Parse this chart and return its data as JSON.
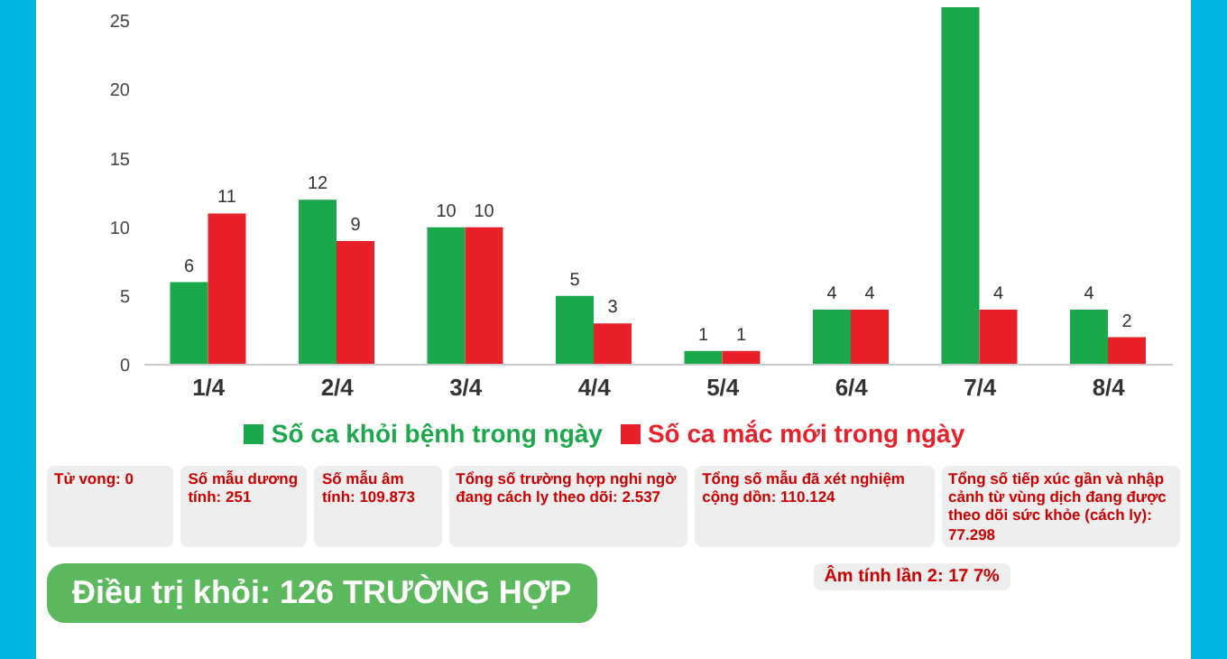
{
  "chart_data": {
    "type": "bar",
    "categories": [
      "1/4",
      "2/4",
      "3/4",
      "4/4",
      "5/4",
      "6/4",
      "7/4",
      "8/4"
    ],
    "series": [
      {
        "name": "Số ca khỏi bệnh trong ngày",
        "color": "#1aa84b",
        "values": [
          6,
          12,
          10,
          5,
          1,
          4,
          26,
          4
        ],
        "value_labels": [
          "6",
          "12",
          "10",
          "5",
          "1",
          "4",
          null,
          "4"
        ]
      },
      {
        "name": "Số ca mắc mới trong ngày",
        "color": "#e8202a",
        "values": [
          11,
          9,
          10,
          3,
          1,
          4,
          4,
          2
        ],
        "value_labels": [
          "11",
          "9",
          "10",
          "3",
          "1",
          "4",
          "4",
          "2"
        ]
      }
    ],
    "ylim": [
      0,
      26
    ],
    "yticks": [
      0,
      5,
      10,
      15,
      20,
      25
    ],
    "grid": false,
    "legend": "bottom",
    "annotations": [
      "Tử vong: 0",
      "Số mẫu dương tính: 251",
      "Số mẫu âm tính: 109.873",
      "Tổng số trường hợp nghi ngờ đang cách ly theo dõi: 2.537",
      "Tổng số mẫu đã xét nghiệm cộng dồn: 110.124",
      "Tổng số tiếp xúc gần và nhập cảnh từ vùng dịch đang được theo dõi sức khỏe (cách ly): 77.298",
      "Điều trị khỏi: 126 TRƯỜNG HỢP",
      "Âm tính lần 2: 17 7%"
    ]
  }
}
